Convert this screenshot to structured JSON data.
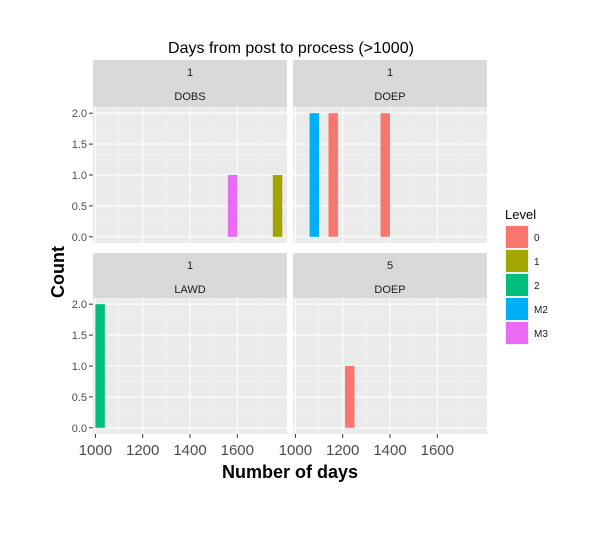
{
  "chart_data": {
    "type": "bar",
    "title": "Days from post to process (>1000)",
    "xlabel": "Number of days",
    "ylabel": "Count",
    "xlim": [
      990,
      1810
    ],
    "ylim": [
      -0.1,
      2.1
    ],
    "x_ticks": [
      1000,
      1200,
      1400,
      1600
    ],
    "x_tick_labels": [
      "1000",
      "1200",
      "1400",
      "1600"
    ],
    "y_ticks": [
      0,
      0.5,
      1,
      1.5,
      2
    ],
    "y_tick_labels": [
      "0.0",
      "0.5",
      "1.0",
      "1.5",
      "2.0"
    ],
    "bar_width_days": 40,
    "grid": true,
    "legend": {
      "title": "Level",
      "placement": "right",
      "items": [
        {
          "label": "0",
          "color": "#F8766D"
        },
        {
          "label": "1",
          "color": "#A3A500"
        },
        {
          "label": "2",
          "color": "#00BF7D"
        },
        {
          "label": "M2",
          "color": "#00B0F6"
        },
        {
          "label": "M3",
          "color": "#E76BF3"
        }
      ]
    },
    "panels": [
      {
        "strip_top": "1",
        "strip_bottom": "DOBS",
        "bars": [
          {
            "x": 1580,
            "value": 1,
            "level": "M3"
          },
          {
            "x": 1770,
            "value": 1,
            "level": "1"
          }
        ]
      },
      {
        "strip_top": "1",
        "strip_bottom": "DOEP",
        "bars": [
          {
            "x": 1080,
            "value": 2,
            "level": "M2"
          },
          {
            "x": 1160,
            "value": 2,
            "level": "0"
          },
          {
            "x": 1380,
            "value": 2,
            "level": "0"
          }
        ]
      },
      {
        "strip_top": "1",
        "strip_bottom": "LAWD",
        "bars": [
          {
            "x": 1020,
            "value": 2,
            "level": "2"
          }
        ]
      },
      {
        "strip_top": "5",
        "strip_bottom": "DOEP",
        "bars": [
          {
            "x": 1230,
            "value": 1,
            "level": "0"
          }
        ]
      }
    ]
  }
}
